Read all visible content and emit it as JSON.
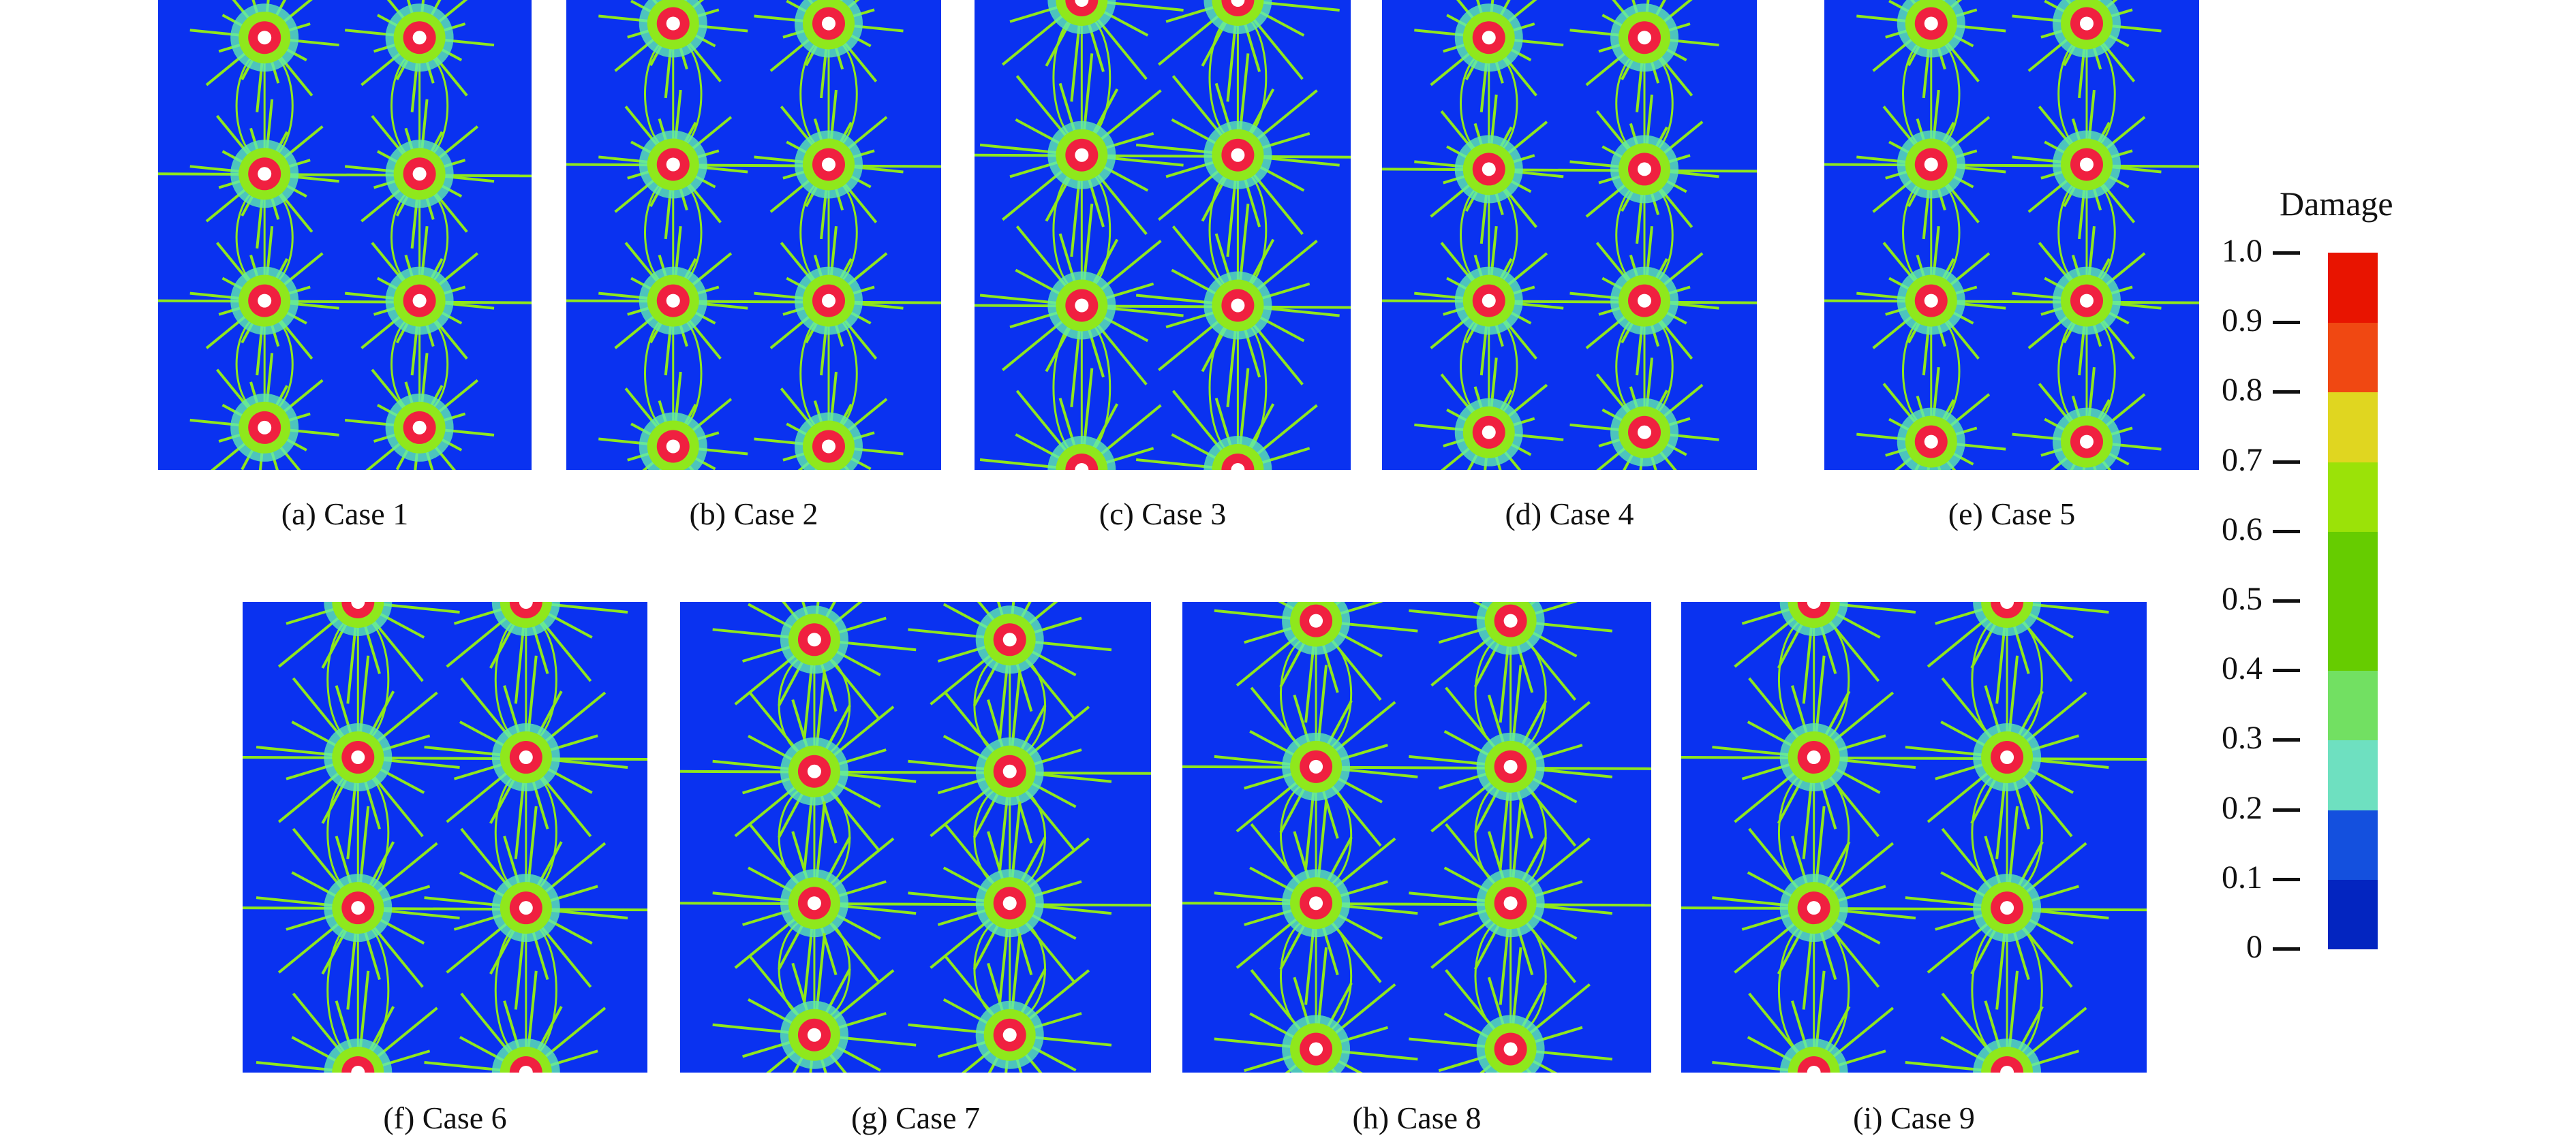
{
  "panels": [
    {
      "label": "(a) Case 1"
    },
    {
      "label": "(b) Case 2"
    },
    {
      "label": "(c) Case 3"
    },
    {
      "label": "(d) Case 4"
    },
    {
      "label": "(e) Case 5"
    },
    {
      "label": "(f) Case 6"
    },
    {
      "label": "(g) Case 7"
    },
    {
      "label": "(h) Case 8"
    },
    {
      "label": "(i) Case 9"
    }
  ],
  "colorbar": {
    "title": "Damage",
    "ticks": [
      "0",
      "0.1",
      "0.2",
      "0.3",
      "0.4",
      "0.5",
      "0.6",
      "0.7",
      "0.8",
      "0.9",
      "1.0"
    ],
    "colors": [
      "#0325c0",
      "#1450de",
      "#6ee0c0",
      "#72e062",
      "#66cc00",
      "#66cc00",
      "#9be208",
      "#e0d620",
      "#f04812",
      "#e81400"
    ],
    "range": [
      0,
      1
    ]
  },
  "colors": {
    "background": "#0a32f0",
    "crack": "#8fe81c",
    "halo": "#5ee8b0",
    "core": "#f02040",
    "hole": "#ffffff"
  }
}
